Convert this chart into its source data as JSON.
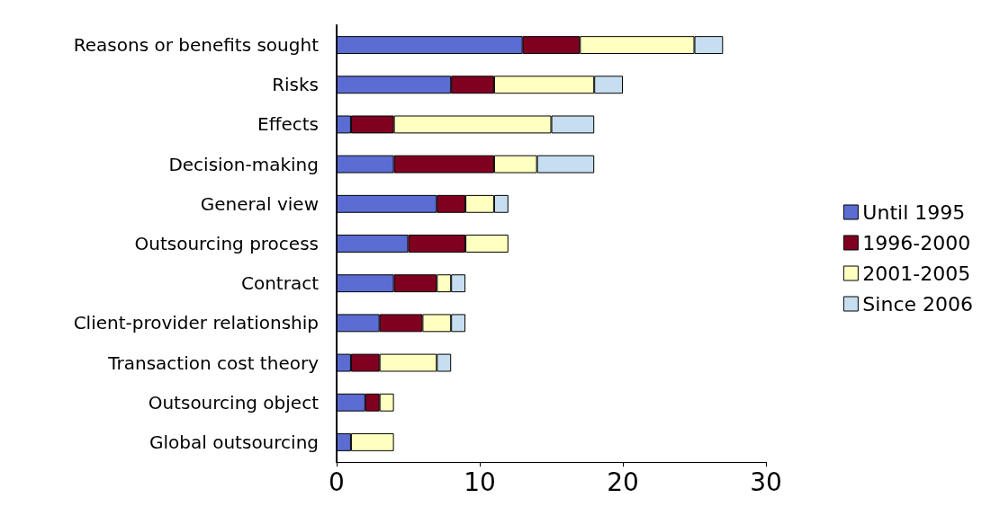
{
  "chart_data": {
    "type": "bar",
    "orientation": "horizontal",
    "stacked": true,
    "categories": [
      "Reasons or benefits sought",
      "Risks",
      "Effects",
      "Decision-making",
      "General view",
      "Outsourcing process",
      "Contract",
      "Client-provider relationship",
      "Transaction cost theory",
      "Outsourcing object",
      "Global outsourcing"
    ],
    "series": [
      {
        "name": "Until 1995",
        "color": "#5b6cd3",
        "values": [
          13,
          8,
          1,
          4,
          7,
          5,
          4,
          3,
          1,
          2,
          1
        ]
      },
      {
        "name": "1996-2000",
        "color": "#800020",
        "values": [
          4,
          3,
          3,
          7,
          2,
          4,
          3,
          3,
          2,
          1,
          0
        ]
      },
      {
        "name": "2001-2005",
        "color": "#ffffc0",
        "values": [
          8,
          7,
          11,
          3,
          2,
          3,
          1,
          2,
          4,
          1,
          3
        ]
      },
      {
        "name": "Since 2006",
        "color": "#c6def0",
        "values": [
          2,
          2,
          3,
          4,
          1,
          0,
          1,
          1,
          1,
          0,
          0
        ]
      }
    ],
    "xlim": [
      0,
      30
    ],
    "xticks": [
      0,
      10,
      20,
      30
    ],
    "grid": false,
    "legend": "right"
  }
}
